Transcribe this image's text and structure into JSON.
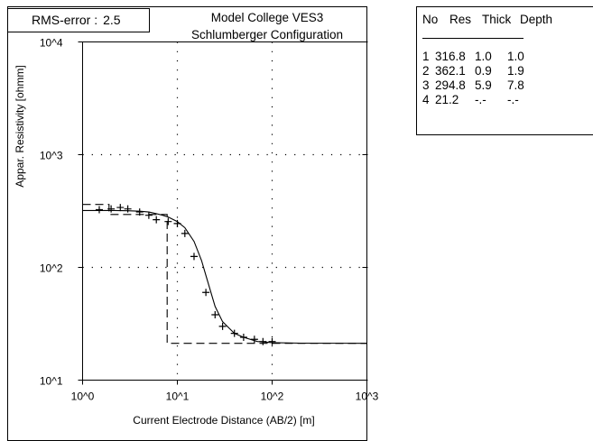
{
  "rms": {
    "label": "RMS-error :",
    "value": "2.5"
  },
  "chart_data": {
    "type": "line",
    "title": "Model College VES3",
    "subtitle": "Schlumberger Configuration",
    "xlabel": "Current Electrode Distance (AB/2) [m]",
    "ylabel": "Appar. Resistivity [ohmm]",
    "xscale": "log",
    "yscale": "log",
    "xlim": [
      1,
      1000
    ],
    "ylim": [
      10,
      10000
    ],
    "x_ticks": [
      "10^0",
      "10^1",
      "10^2",
      "10^3"
    ],
    "y_ticks": [
      "10^1",
      "10^2",
      "10^3",
      "10^4"
    ],
    "grid": "dotted",
    "series": [
      {
        "style": "markers",
        "marker": "+",
        "x": [
          1.5,
          2,
          2.5,
          3,
          4,
          5,
          6,
          8,
          10,
          12,
          15,
          20,
          25,
          30,
          40,
          50,
          65,
          80,
          100
        ],
        "y": [
          325,
          330,
          340,
          330,
          310,
          290,
          265,
          255,
          245,
          200,
          125,
          60,
          38,
          30,
          26,
          24,
          23,
          22,
          22
        ]
      },
      {
        "style": "solid",
        "x": [
          1,
          2,
          3,
          4,
          5,
          6,
          7,
          8,
          10,
          12,
          15,
          18,
          20,
          25,
          30,
          40,
          50,
          70,
          100,
          200,
          1000
        ],
        "y": [
          320,
          320,
          318,
          315,
          310,
          300,
          290,
          280,
          255,
          225,
          170,
          115,
          85,
          45,
          33,
          26,
          24,
          22,
          21.5,
          21.3,
          21.2
        ]
      },
      {
        "style": "dashed",
        "x": [
          1,
          1.9,
          1.9,
          7.8,
          7.8,
          1000
        ],
        "y": [
          362,
          362,
          294.8,
          294.8,
          21.2,
          21.2
        ]
      }
    ],
    "layers": [
      {
        "no": "1",
        "res": "316.8",
        "thick": "1.0",
        "depth": "1.0"
      },
      {
        "no": "2",
        "res": "362.1",
        "thick": "0.9",
        "depth": "1.9"
      },
      {
        "no": "3",
        "res": "294.8",
        "thick": "5.9",
        "depth": "7.8"
      },
      {
        "no": "4",
        "res": "21.2",
        "thick": "-.-",
        "depth": "-.-"
      }
    ]
  },
  "table": {
    "headers": {
      "no": "No",
      "res": "Res",
      "thick": "Thick",
      "depth": "Depth"
    }
  },
  "colors": {
    "line": "#000000",
    "grid": "#000000",
    "background": "#ffffff"
  }
}
